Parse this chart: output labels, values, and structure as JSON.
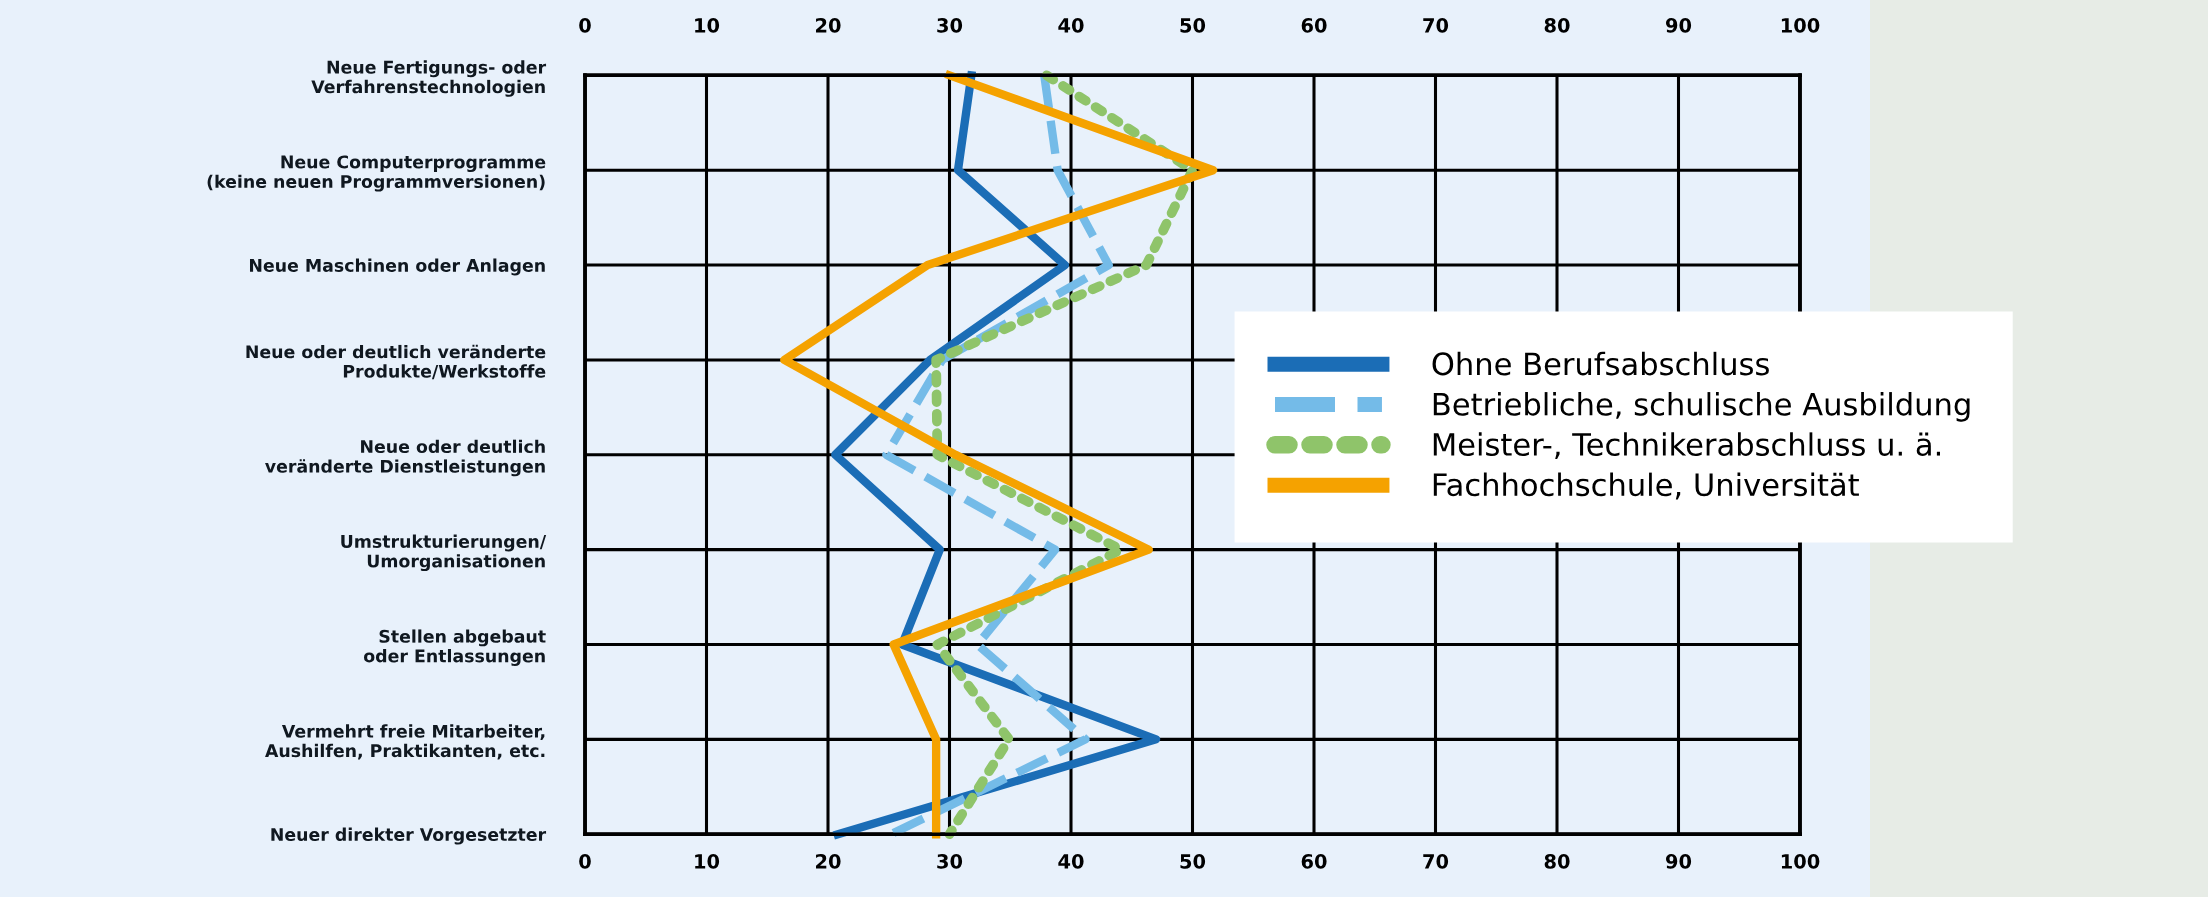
{
  "chart_data": {
    "type": "line",
    "orientation": "horizontal",
    "categories": [
      "Neue Fertigungs- oder\nVerfahrenstechnologien",
      "Neue Computerprogramme\n(keine neuen Programmversionen)",
      "Neue Maschinen oder Anlagen",
      "Neue oder deutlich veränderte\nProdukte/Werkstoffe",
      "Neue oder deutlich\nveränderte Dienstleistungen",
      "Umstrukturierungen/\nUmorganisationen",
      "Stellen abgebaut\noder Entlassungen",
      "Vermehrt freie Mitarbeiter,\nAushilfen, Praktikanten, etc.",
      "Neuer direkter Vorgesetzter"
    ],
    "series": [
      {
        "name": "Ohne Berufsabschluss",
        "color": "#1b6db6",
        "line_style": "solid",
        "values": [
          31.8,
          30.7,
          39.5,
          28.4,
          20.6,
          29.2,
          26.1,
          47,
          20.8
        ]
      },
      {
        "name": "Betriebliche, schulische Ausbildung",
        "color": "#74bbe8",
        "line_style": "dashed",
        "values": [
          37.8,
          38.9,
          43.1,
          29.4,
          24.8,
          38.7,
          32.3,
          41.2,
          25.2
        ]
      },
      {
        "name": "Meister-, Technikerabschluss u. ä.",
        "color": "#8fc46a",
        "line_style": "dotted",
        "values": [
          38,
          50,
          46.2,
          28.9,
          29,
          44.1,
          29,
          34.9,
          30
        ]
      },
      {
        "name": "Fachhochschule, Universität",
        "color": "#f5a200",
        "line_style": "solid",
        "values": [
          30,
          51.7,
          28.2,
          16.4,
          30.5,
          46.4,
          25.4,
          28.9,
          28.9
        ]
      }
    ],
    "xlim": [
      0,
      100
    ],
    "xticks": [
      0,
      10,
      20,
      30,
      40,
      50,
      60,
      70,
      80,
      90,
      100
    ],
    "x2lim": [
      0,
      100
    ],
    "x2ticks": [
      0,
      10,
      20,
      30,
      40,
      50,
      60,
      70,
      80,
      90,
      100
    ],
    "grid": true,
    "legend": "right",
    "marker": "none"
  }
}
